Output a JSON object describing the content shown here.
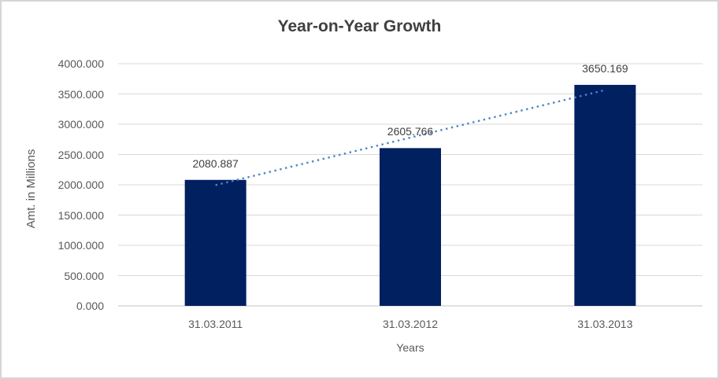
{
  "frame": {
    "background": "#ffffff",
    "border_color": "#d5d5d5"
  },
  "chart_data": {
    "type": "bar",
    "title": "Year-on-Year Growth",
    "xlabel": "Years",
    "ylabel": "Amt. in Millions",
    "categories": [
      "31.03.2011",
      "31.03.2012",
      "31.03.2013"
    ],
    "values": [
      2080.887,
      2605.766,
      3650.169
    ],
    "data_labels": [
      "2080.887",
      "2605.766",
      "3650.169"
    ],
    "ylim": [
      0,
      4000
    ],
    "y_tick_step": 500,
    "y_tick_labels": [
      "0.000",
      "500.000",
      "1000.000",
      "1500.000",
      "2000.000",
      "2500.000",
      "3000.000",
      "3500.000",
      "4000.000"
    ],
    "grid": true,
    "legend": "none",
    "trendline": {
      "type": "linear",
      "style": "dotted",
      "color": "#4f84c4"
    },
    "colors": {
      "bar": "#002060",
      "gridline": "#d9d9d9",
      "axis_line": "#c3c3c3",
      "title_text": "#404040",
      "tick_text": "#595959",
      "data_label_text": "#404040"
    }
  }
}
